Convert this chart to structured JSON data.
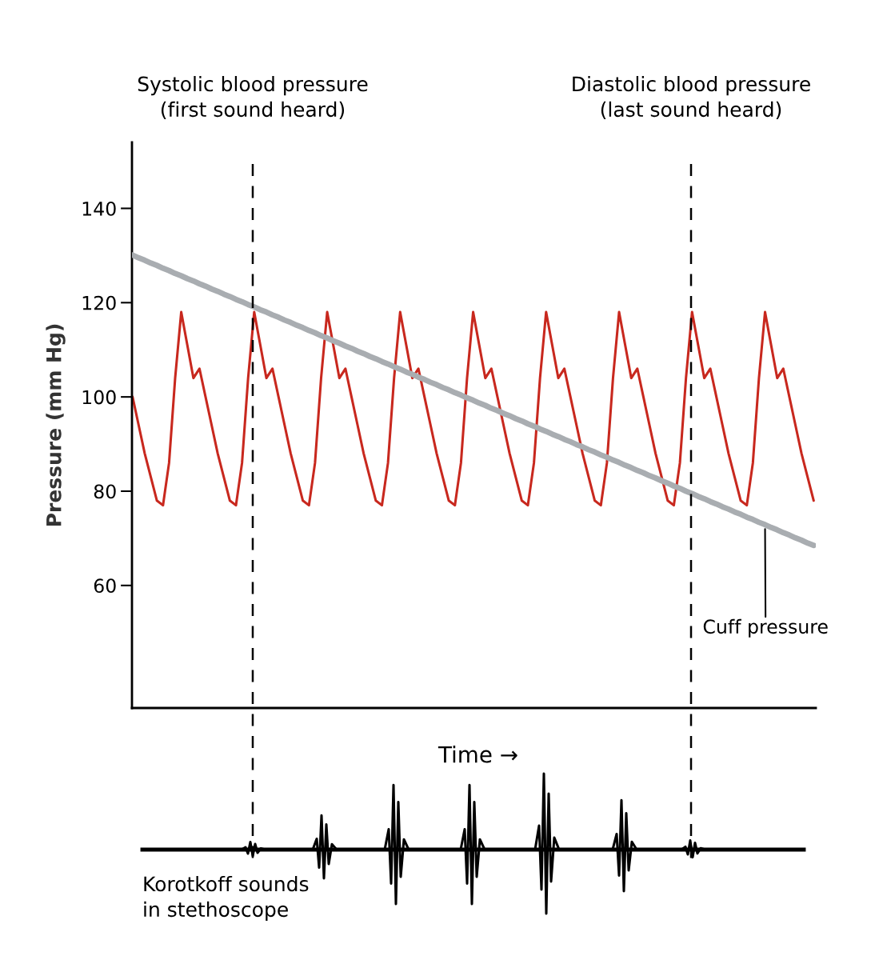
{
  "chart_data": {
    "type": "line",
    "xlabel": "Time →",
    "ylabel": "Pressure (mm Hg)",
    "categories": [
      null,
      null,
      null,
      null,
      null,
      null,
      null,
      null,
      null,
      null,
      null,
      null,
      null,
      null,
      null,
      null,
      null,
      null,
      null,
      null,
      null,
      null,
      null,
      null,
      null,
      null,
      null,
      null,
      null,
      null,
      null,
      null,
      null,
      null,
      null,
      null,
      null,
      null,
      null,
      null,
      null,
      null,
      null,
      null,
      null,
      null,
      null,
      null,
      null,
      null,
      null,
      null,
      null,
      null,
      null,
      null,
      null,
      null,
      null,
      null,
      null,
      null,
      null,
      null,
      null,
      null,
      null,
      null,
      null,
      null,
      null,
      null,
      null,
      null,
      null,
      null,
      null,
      null,
      null,
      null,
      null,
      null,
      null,
      null,
      null,
      null,
      null,
      null,
      null,
      null,
      null,
      null,
      null,
      null,
      null,
      null,
      null,
      null,
      null,
      null,
      null,
      null,
      null,
      null,
      null,
      null,
      null,
      null,
      null,
      null,
      null,
      null,
      null
    ],
    "ylim": [
      34,
      154
    ],
    "yticks": [
      60,
      80,
      100,
      120,
      140
    ],
    "tick_labels": "y",
    "series": [
      {
        "color": "#c8281e",
        "values": [
          100,
          94,
          88,
          83,
          78,
          77,
          86,
          104,
          118,
          111,
          104,
          106,
          100,
          94,
          88,
          83,
          78,
          77,
          86,
          104,
          118,
          111,
          104,
          106,
          100,
          94,
          88,
          83,
          78,
          77,
          86,
          104,
          118,
          111,
          104,
          106,
          100,
          94,
          88,
          83,
          78,
          77,
          86,
          104,
          118,
          111,
          104,
          106,
          100,
          94,
          88,
          83,
          78,
          77,
          86,
          104,
          118,
          111,
          104,
          106,
          100,
          94,
          88,
          83,
          78,
          77,
          86,
          104,
          118,
          111,
          104,
          106,
          100,
          94,
          88,
          83,
          78,
          77,
          86,
          104,
          118,
          111,
          104,
          106,
          100,
          94,
          88,
          83,
          78,
          77,
          86,
          104,
          118,
          111,
          104,
          106,
          100,
          94,
          88,
          83,
          78,
          77,
          86,
          104,
          118,
          111,
          104,
          106,
          100,
          94,
          88,
          83,
          78
        ]
      },
      {
        "name": "Cuff pressure",
        "color": "#a9adb1",
        "values": [
          130.1,
          129.5,
          129.0,
          128.4,
          127.9,
          127.3,
          126.8,
          126.2,
          125.7,
          125.1,
          124.6,
          124.0,
          123.5,
          122.9,
          122.4,
          121.8,
          121.3,
          120.7,
          120.2,
          119.6,
          119.1,
          118.5,
          118.0,
          117.4,
          116.9,
          116.3,
          115.8,
          115.2,
          114.7,
          114.1,
          113.6,
          113.0,
          112.5,
          111.9,
          111.4,
          110.8,
          110.3,
          109.7,
          109.2,
          108.6,
          108.1,
          107.5,
          107.0,
          106.4,
          105.9,
          105.3,
          104.8,
          104.2,
          103.7,
          103.1,
          102.6,
          102.0,
          101.5,
          100.9,
          100.4,
          99.8,
          99.3,
          98.7,
          98.2,
          97.6,
          97.1,
          96.5,
          96.0,
          95.4,
          94.9,
          94.3,
          93.8,
          93.2,
          92.7,
          92.1,
          91.6,
          91.0,
          90.5,
          89.9,
          89.4,
          88.8,
          88.3,
          87.7,
          87.2,
          86.6,
          86.1,
          85.5,
          85.0,
          84.4,
          83.9,
          83.3,
          82.8,
          82.2,
          81.7,
          81.1,
          80.6,
          80.0,
          79.5,
          78.9,
          78.4,
          77.8,
          77.3,
          76.7,
          76.2,
          75.6,
          75.1,
          74.5,
          74.0,
          73.4,
          72.9,
          72.3,
          71.8,
          71.2,
          70.7,
          70.1,
          69.6,
          69.0,
          68.5
        ]
      }
    ],
    "annotations": [
      "Systolic blood pressure\n(first sound heard)",
      "Diastolic blood pressure\n(last sound heard)",
      "Korotkoff sounds\nin stethoscope"
    ]
  }
}
